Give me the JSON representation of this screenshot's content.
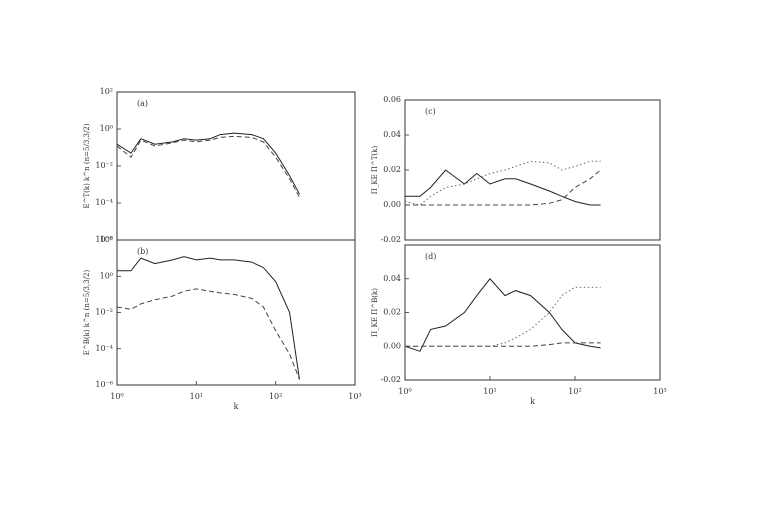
{
  "chart_data": [
    {
      "type": "line",
      "panel_label": "(a)",
      "ylabel": "E^T(k) k^n (n=5/3,3/2)",
      "xlog": true,
      "ylog": true,
      "xlim": [
        1,
        1000
      ],
      "ylim": [
        1e-06,
        100
      ],
      "yticks": [
        {
          "value": 1e-06,
          "label": "10⁻⁶"
        },
        {
          "value": 0.0001,
          "label": "10⁻⁴"
        },
        {
          "value": 0.01,
          "label": "10⁻²"
        },
        {
          "value": 1,
          "label": "10⁰"
        },
        {
          "value": 100,
          "label": "10²"
        }
      ],
      "x": [
        1,
        1.5,
        2,
        3,
        5,
        7,
        10,
        15,
        20,
        30,
        50,
        70,
        100,
        150,
        200
      ],
      "series": [
        {
          "color": "#222",
          "dash": "solid",
          "values": [
            0.15,
            0.05,
            0.3,
            0.15,
            0.2,
            0.3,
            0.25,
            0.3,
            0.5,
            0.6,
            0.5,
            0.3,
            0.05,
            0.003,
            0.0003
          ]
        },
        {
          "color": "#444",
          "dash": "dashed",
          "values": [
            0.12,
            0.03,
            0.25,
            0.12,
            0.18,
            0.25,
            0.2,
            0.25,
            0.35,
            0.4,
            0.35,
            0.2,
            0.03,
            0.002,
            0.0002
          ]
        }
      ]
    },
    {
      "type": "line",
      "panel_label": "(b)",
      "ylabel": "E^B(k) k^n (n=5/3,3/2)",
      "xlabel": "k",
      "xlog": true,
      "ylog": true,
      "xlim": [
        1,
        1000
      ],
      "xticks": [
        {
          "value": 1,
          "label": "10⁰"
        },
        {
          "value": 10,
          "label": "10¹"
        },
        {
          "value": 100,
          "label": "10²"
        },
        {
          "value": 1000,
          "label": "10³"
        }
      ],
      "ylim": [
        1e-06,
        100
      ],
      "yticks": [
        {
          "value": 1e-06,
          "label": "10⁻⁶"
        },
        {
          "value": 0.0001,
          "label": "10⁻⁴"
        },
        {
          "value": 0.01,
          "label": "10⁻²"
        },
        {
          "value": 1,
          "label": "10⁰"
        },
        {
          "value": 100,
          "label": "10²"
        }
      ],
      "x": [
        1,
        1.5,
        2,
        3,
        5,
        7,
        10,
        15,
        20,
        30,
        50,
        70,
        100,
        150,
        200
      ],
      "series": [
        {
          "color": "#222",
          "dash": "solid",
          "values": [
            2,
            2,
            10,
            5,
            8,
            12,
            8,
            10,
            8,
            8,
            6,
            3,
            0.5,
            0.01,
            2e-06
          ]
        },
        {
          "color": "#444",
          "dash": "dashed",
          "values": [
            0.02,
            0.015,
            0.03,
            0.05,
            0.08,
            0.15,
            0.2,
            0.15,
            0.12,
            0.1,
            0.06,
            0.02,
            0.001,
            5e-05,
            2e-06
          ]
        }
      ]
    },
    {
      "type": "line",
      "panel_label": "(c)",
      "ylabel": "Π_KE Π^T(k)",
      "xlog": true,
      "ylog": false,
      "xlim": [
        1,
        1000
      ],
      "ylim": [
        -0.02,
        0.06
      ],
      "yticks": [
        -0.02,
        {
          "value": 0,
          "label": "0.00"
        },
        0.02,
        0.04,
        0.06
      ],
      "x": [
        1,
        1.5,
        2,
        3,
        5,
        7,
        10,
        15,
        20,
        30,
        50,
        70,
        100,
        150,
        200
      ],
      "series": [
        {
          "color": "#222",
          "dash": "solid",
          "values": [
            0.005,
            0.005,
            0.01,
            0.02,
            0.012,
            0.018,
            0.012,
            0.015,
            0.015,
            0.012,
            0.008,
            0.005,
            0.002,
            0,
            0
          ]
        },
        {
          "color": "#444",
          "dash": "dashed",
          "values": [
            0,
            0,
            0,
            0,
            0,
            0,
            0,
            0,
            0,
            0,
            0.001,
            0.003,
            0.01,
            0.015,
            0.02
          ]
        },
        {
          "color": "#666",
          "dash": "dotted",
          "values": [
            0.002,
            0,
            0.005,
            0.01,
            0.012,
            0.015,
            0.018,
            0.02,
            0.022,
            0.025,
            0.024,
            0.02,
            0.022,
            0.025,
            0.025
          ]
        }
      ]
    },
    {
      "type": "line",
      "panel_label": "(d)",
      "ylabel": "Π_KE Π^B(k)",
      "xlabel": "k",
      "xlog": true,
      "ylog": false,
      "xlim": [
        1,
        1000
      ],
      "xticks": [
        {
          "value": 1,
          "label": "10⁰"
        },
        {
          "value": 10,
          "label": "10¹"
        },
        {
          "value": 100,
          "label": "10²"
        },
        {
          "value": 1000,
          "label": "10³"
        }
      ],
      "ylim": [
        -0.02,
        0.06
      ],
      "yticks": [
        -0.02,
        {
          "value": 0,
          "label": "0.00"
        },
        0.02,
        0.04
      ],
      "x": [
        1,
        1.5,
        2,
        3,
        5,
        7,
        10,
        15,
        20,
        30,
        50,
        70,
        100,
        150,
        200
      ],
      "series": [
        {
          "color": "#222",
          "dash": "solid",
          "values": [
            0,
            -0.003,
            0.01,
            0.012,
            0.02,
            0.03,
            0.04,
            0.03,
            0.033,
            0.03,
            0.02,
            0.01,
            0.002,
            0,
            -0.001
          ]
        },
        {
          "color": "#444",
          "dash": "dashed",
          "values": [
            0,
            0,
            0,
            0,
            0,
            0,
            0,
            0,
            0,
            0,
            0.001,
            0.002,
            0.002,
            0.002,
            0.002
          ]
        },
        {
          "color": "#666",
          "dash": "dotted",
          "values": [
            0,
            0,
            0,
            0,
            0,
            0,
            0,
            0.002,
            0.005,
            0.01,
            0.02,
            0.03,
            0.035,
            0.035,
            0.035
          ]
        }
      ]
    }
  ]
}
